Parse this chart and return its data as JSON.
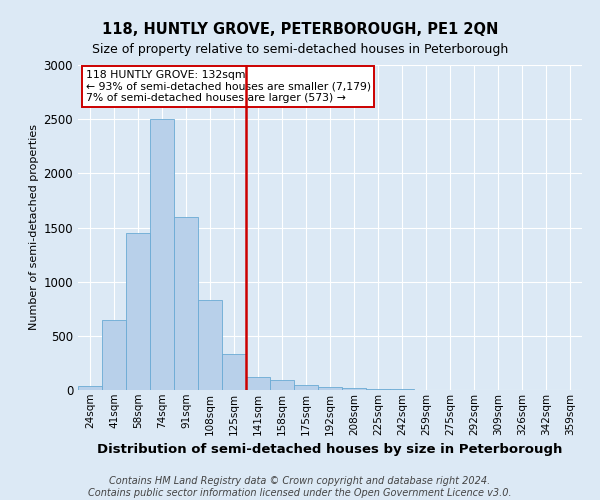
{
  "title": "118, HUNTLY GROVE, PETERBOROUGH, PE1 2QN",
  "subtitle": "Size of property relative to semi-detached houses in Peterborough",
  "xlabel": "Distribution of semi-detached houses by size in Peterborough",
  "ylabel": "Number of semi-detached properties",
  "categories": [
    "24sqm",
    "41sqm",
    "58sqm",
    "74sqm",
    "91sqm",
    "108sqm",
    "125sqm",
    "141sqm",
    "158sqm",
    "175sqm",
    "192sqm",
    "208sqm",
    "225sqm",
    "242sqm",
    "259sqm",
    "275sqm",
    "292sqm",
    "309sqm",
    "326sqm",
    "342sqm",
    "359sqm"
  ],
  "values": [
    35,
    650,
    1450,
    2500,
    1600,
    830,
    330,
    120,
    90,
    50,
    30,
    15,
    10,
    5,
    3,
    2,
    1,
    1,
    0,
    0,
    0
  ],
  "bar_color": "#b8d0ea",
  "bar_edge_color": "#6aaad4",
  "vline_color": "#cc0000",
  "vline_pos": 6.5,
  "annotation_title": "118 HUNTLY GROVE: 132sqm",
  "annotation_line1": "← 93% of semi-detached houses are smaller (7,179)",
  "annotation_line2": "7% of semi-detached houses are larger (573) →",
  "annotation_box_color": "#ffffff",
  "annotation_box_edge": "#cc0000",
  "footer_line1": "Contains HM Land Registry data © Crown copyright and database right 2024.",
  "footer_line2": "Contains public sector information licensed under the Open Government Licence v3.0.",
  "ylim": [
    0,
    3000
  ],
  "background_color": "#dce9f5",
  "plot_bg_color": "#dce9f5",
  "grid_color": "#ffffff",
  "title_fontsize": 10.5,
  "subtitle_fontsize": 9,
  "xlabel_fontsize": 9.5,
  "ylabel_fontsize": 8,
  "tick_fontsize": 7.5,
  "footer_fontsize": 7
}
